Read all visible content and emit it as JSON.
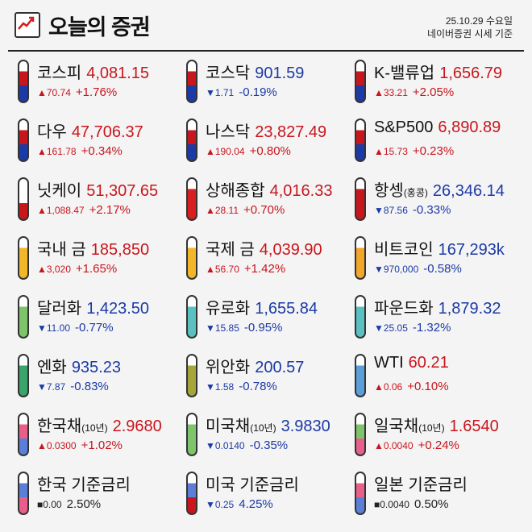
{
  "header": {
    "title": "오늘의 증권",
    "date": "25.10.29 수요일",
    "source": "네이버증권 시세 기준"
  },
  "items": [
    {
      "name": "코스피",
      "price": "4,081.15",
      "change": "▲70.74",
      "pct": "+1.76%",
      "dir": "up",
      "icon": "korea-flag-icon",
      "c1": "#c8161d",
      "c2": "#1c3aa5"
    },
    {
      "name": "코스닥",
      "price": "901.59",
      "change": "▼1.71",
      "pct": "-0.19%",
      "dir": "down",
      "icon": "korea-flag-icon",
      "c1": "#c8161d",
      "c2": "#1c3aa5"
    },
    {
      "name": "K-밸류업",
      "price": "1,656.79",
      "change": "▲33.21",
      "pct": "+2.05%",
      "dir": "up",
      "icon": "korea-flag-icon",
      "c1": "#c8161d",
      "c2": "#1c3aa5"
    },
    {
      "name": "다우",
      "price": "47,706.37",
      "change": "▲161.78",
      "pct": "+0.34%",
      "dir": "up",
      "icon": "us-flag-icon",
      "c1": "#c8161d",
      "c2": "#1c3aa5"
    },
    {
      "name": "나스닥",
      "price": "23,827.49",
      "change": "▲190.04",
      "pct": "+0.80%",
      "dir": "up",
      "icon": "us-flag-icon",
      "c1": "#c8161d",
      "c2": "#1c3aa5"
    },
    {
      "name": "S&P500",
      "price": "6,890.89",
      "change": "▲15.73",
      "pct": "+0.23%",
      "dir": "up",
      "icon": "us-flag-icon",
      "c1": "#c8161d",
      "c2": "#1c3aa5"
    },
    {
      "name": "닛케이",
      "price": "51,307.65",
      "change": "▲1,088.47",
      "pct": "+2.17%",
      "dir": "up",
      "icon": "japan-flag-icon",
      "c1": "#ffffff",
      "c2": "#c8161d"
    },
    {
      "name": "상해종합",
      "price": "4,016.33",
      "change": "▲28.11",
      "pct": "+0.70%",
      "dir": "up",
      "icon": "china-flag-icon",
      "c1": "#d81e1e",
      "c2": "#d81e1e"
    },
    {
      "name": "항셍",
      "sub": "(홍콩)",
      "price": "26,346.14",
      "change": "▼87.56",
      "pct": "-0.33%",
      "dir": "down",
      "icon": "hongkong-flag-icon",
      "c1": "#c8161d",
      "c2": "#c8161d"
    },
    {
      "name": "국내 금",
      "price": "185,850",
      "change": "▲3,020",
      "pct": "+1.65%",
      "dir": "up",
      "icon": "gold-bar-icon",
      "c1": "#f2b62a",
      "c2": "#f2b62a"
    },
    {
      "name": "국제 금",
      "price": "4,039.90",
      "change": "▲56.70",
      "pct": "+1.42%",
      "dir": "up",
      "icon": "gold-bar-icon",
      "c1": "#f2b62a",
      "c2": "#f2b62a"
    },
    {
      "name": "비트코인",
      "price": "167,293k",
      "change": "▼970,000",
      "pct": "-0.58%",
      "dir": "down",
      "icon": "bitcoin-icon",
      "c1": "#f2a72a",
      "c2": "#f2a72a"
    },
    {
      "name": "달러화",
      "price": "1,423.50",
      "change": "▼11.00",
      "pct": "-0.77%",
      "dir": "down",
      "icon": "dollar-bill-icon",
      "c1": "#7ec46a",
      "c2": "#7ec46a"
    },
    {
      "name": "유로화",
      "price": "1,655.84",
      "change": "▼15.85",
      "pct": "-0.95%",
      "dir": "down",
      "icon": "euro-bill-icon",
      "c1": "#5bc0c0",
      "c2": "#5bc0c0"
    },
    {
      "name": "파운드화",
      "price": "1,879.32",
      "change": "▼25.05",
      "pct": "-1.32%",
      "dir": "down",
      "icon": "pound-bill-icon",
      "c1": "#5bc0c0",
      "c2": "#5bc0c0"
    },
    {
      "name": "엔화",
      "price": "935.23",
      "change": "▼7.87",
      "pct": "-0.83%",
      "dir": "down",
      "icon": "yen-bill-icon",
      "c1": "#3aa56a",
      "c2": "#3aa56a"
    },
    {
      "name": "위안화",
      "price": "200.57",
      "change": "▼1.58",
      "pct": "-0.78%",
      "dir": "down",
      "icon": "yuan-bill-icon",
      "c1": "#a5a53a",
      "c2": "#a5a53a"
    },
    {
      "name": "WTI",
      "price": "60.21",
      "change": "▲0.06",
      "pct": "+0.10%",
      "dir": "up",
      "icon": "oil-drop-icon",
      "c1": "#5b9fd8",
      "c2": "#5b9fd8"
    },
    {
      "name": "한국채",
      "sub": "(10년)",
      "price": "2.9680",
      "change": "▲0.0300",
      "pct": "+1.02%",
      "dir": "up",
      "icon": "korea-bond-icon",
      "c1": "#e8608a",
      "c2": "#5b7fd8"
    },
    {
      "name": "미국채",
      "sub": "(10년)",
      "price": "3.9830",
      "change": "▼0.0140",
      "pct": "-0.35%",
      "dir": "down",
      "icon": "us-bond-icon",
      "c1": "#7ec46a",
      "c2": "#7ec46a"
    },
    {
      "name": "일국채",
      "sub": "(10년)",
      "price": "1.6540",
      "change": "▲0.0040",
      "pct": "+0.24%",
      "dir": "up",
      "icon": "japan-bond-icon",
      "c1": "#7ec46a",
      "c2": "#e8608a"
    },
    {
      "name": "한국 기준금리",
      "price": "",
      "change": "■0.00",
      "pct": "2.50%",
      "dir": "flat",
      "icon": "bank-building-icon",
      "c1": "#5b7fd8",
      "c2": "#e8608a"
    },
    {
      "name": "미국 기준금리",
      "price": "",
      "change": "▼0.25",
      "pct": "4.25%",
      "dir": "down",
      "icon": "bank-building-icon",
      "c1": "#5b7fd8",
      "c2": "#c8161d"
    },
    {
      "name": "일본 기준금리",
      "price": "",
      "change": "■0.0040",
      "pct": "0.50%",
      "dir": "flat",
      "icon": "bank-building-icon",
      "c1": "#e8608a",
      "c2": "#5b7fd8"
    }
  ]
}
